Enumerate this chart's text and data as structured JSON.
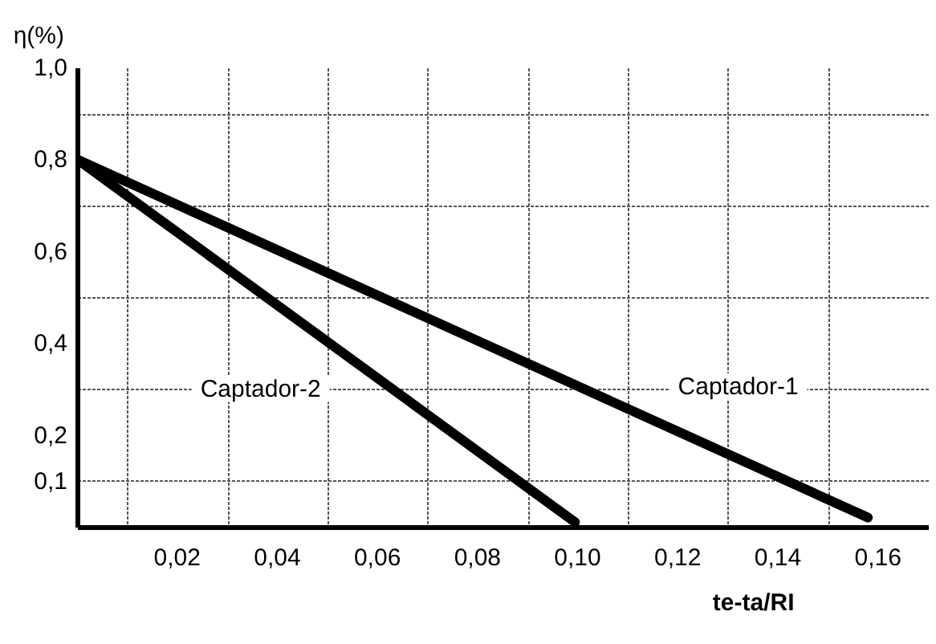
{
  "chart_data": {
    "type": "line",
    "xlabel": "te-ta/RI",
    "ylabel": "η(%)",
    "xlim": [
      0,
      0.17
    ],
    "ylim": [
      0,
      1.0
    ],
    "xticks": [
      {
        "value": 0.01,
        "label": null
      },
      {
        "value": 0.02,
        "label": "0,02"
      },
      {
        "value": 0.03,
        "label": null
      },
      {
        "value": 0.04,
        "label": "0,04"
      },
      {
        "value": 0.05,
        "label": null
      },
      {
        "value": 0.06,
        "label": "0,06"
      },
      {
        "value": 0.07,
        "label": null
      },
      {
        "value": 0.08,
        "label": "0,08"
      },
      {
        "value": 0.09,
        "label": null
      },
      {
        "value": 0.1,
        "label": "0,10"
      },
      {
        "value": 0.11,
        "label": null
      },
      {
        "value": 0.12,
        "label": "0,12"
      },
      {
        "value": 0.13,
        "label": null
      },
      {
        "value": 0.14,
        "label": "0,14"
      },
      {
        "value": 0.15,
        "label": null
      },
      {
        "value": 0.16,
        "label": "0,16"
      }
    ],
    "yticks": [
      {
        "value": 0.1,
        "label": "0,1"
      },
      {
        "value": 0.2,
        "label": "0,2"
      },
      {
        "value": 0.3,
        "label": null
      },
      {
        "value": 0.4,
        "label": "0,4"
      },
      {
        "value": 0.5,
        "label": null
      },
      {
        "value": 0.6,
        "label": "0,6"
      },
      {
        "value": 0.7,
        "label": null
      },
      {
        "value": 0.8,
        "label": "0,8"
      },
      {
        "value": 0.9,
        "label": null
      },
      {
        "value": 1.0,
        "label": "1,0"
      }
    ],
    "grid": true,
    "marker": "none",
    "line_style": "solid",
    "series": [
      {
        "name": "Captador-1",
        "color": "#000000",
        "x": [
          0,
          0.158
        ],
        "values": [
          0.8,
          0.02
        ]
      },
      {
        "name": "Captador-2",
        "color": "#000000",
        "x": [
          0,
          0.0995
        ],
        "values": [
          0.8,
          0.01
        ]
      }
    ]
  }
}
